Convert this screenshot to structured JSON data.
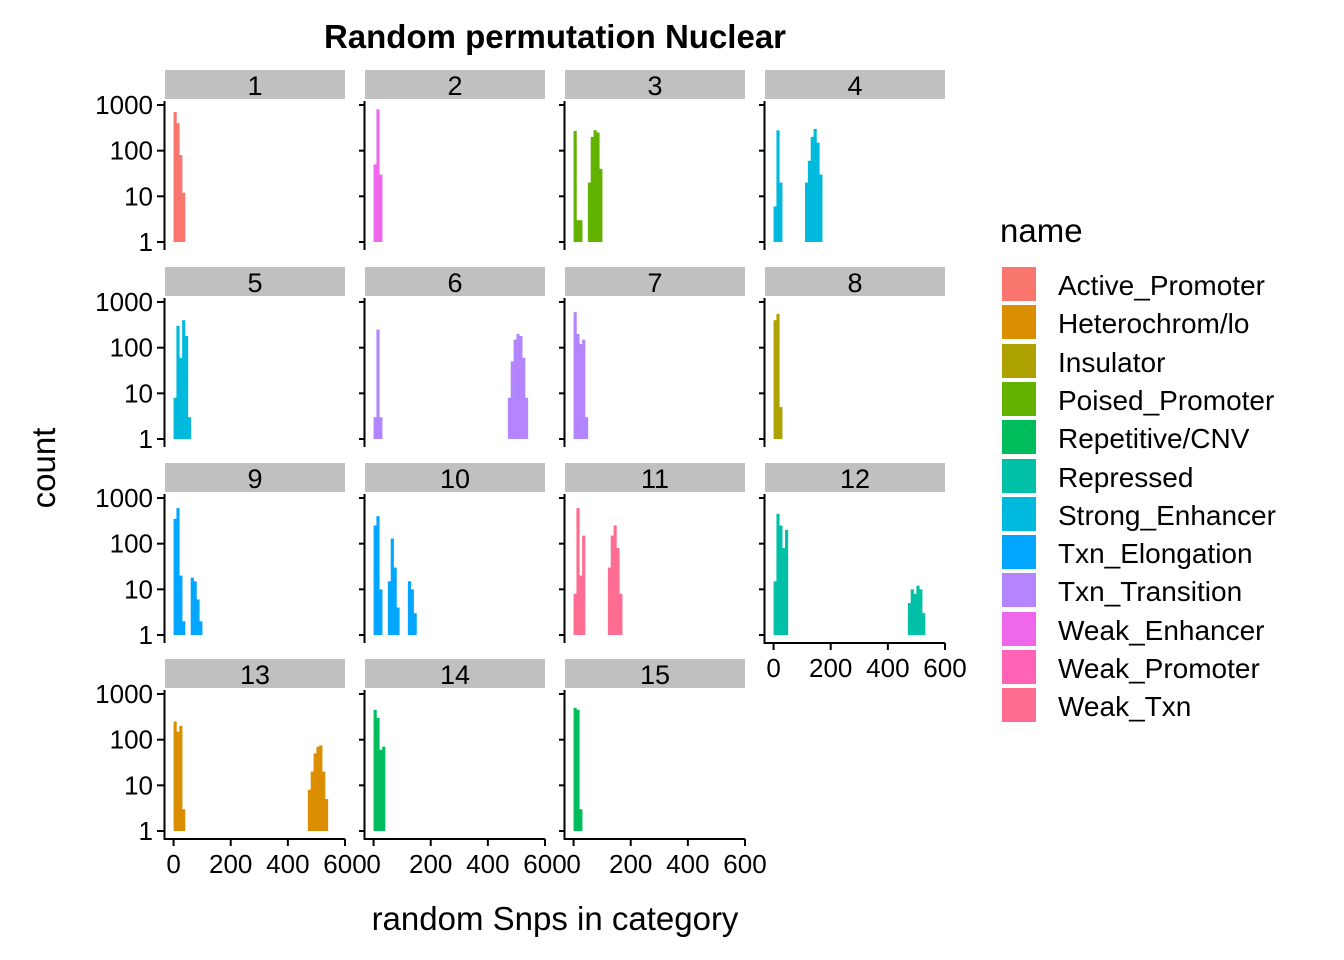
{
  "chart_data": {
    "type": "histogram",
    "title": "Random permutation Nuclear",
    "xlabel": "random Snps in category",
    "ylabel": "count",
    "x_ticks": [
      0,
      200,
      400,
      600
    ],
    "y_ticks": [
      1,
      10,
      100,
      1000
    ],
    "y_scale": "log10",
    "xlim": [
      -30,
      600
    ],
    "ylim": [
      1,
      1000
    ],
    "legend": {
      "title": "name",
      "position": "right",
      "entries": [
        {
          "name": "Active_Promoter",
          "color": "#F8766D"
        },
        {
          "name": "Heterochrom/lo",
          "color": "#DB8E00"
        },
        {
          "name": "Insulator",
          "color": "#AEA200"
        },
        {
          "name": "Poised_Promoter",
          "color": "#64B200"
        },
        {
          "name": "Repetitive/CNV",
          "color": "#00BD5C"
        },
        {
          "name": "Repressed",
          "color": "#00C1A7"
        },
        {
          "name": "Strong_Enhancer",
          "color": "#00BADE"
        },
        {
          "name": "Txn_Elongation",
          "color": "#00A6FF"
        },
        {
          "name": "Txn_Transition",
          "color": "#B385FF"
        },
        {
          "name": "Weak_Enhancer",
          "color": "#EF67EB"
        },
        {
          "name": "Weak_Promoter",
          "color": "#FF63B6"
        },
        {
          "name": "Weak_Txn",
          "color": "#FF6C91"
        }
      ]
    },
    "panels": [
      {
        "label": "1",
        "fill": "#F8766D",
        "bars": [
          [
            0,
            700
          ],
          [
            10,
            400
          ],
          [
            20,
            80
          ],
          [
            30,
            12
          ]
        ]
      },
      {
        "label": "2",
        "fill": "#EF67EB",
        "bars": [
          [
            0,
            50
          ],
          [
            10,
            800
          ],
          [
            20,
            30
          ]
        ]
      },
      {
        "label": "3",
        "fill": "#64B200",
        "bars": [
          [
            0,
            270
          ],
          [
            10,
            3
          ],
          [
            20,
            3
          ],
          [
            50,
            20
          ],
          [
            60,
            200
          ],
          [
            70,
            280
          ],
          [
            80,
            250
          ],
          [
            90,
            40
          ]
        ]
      },
      {
        "label": "4",
        "fill": "#00BADE",
        "bars": [
          [
            0,
            6
          ],
          [
            10,
            280
          ],
          [
            20,
            20
          ],
          [
            110,
            20
          ],
          [
            120,
            60
          ],
          [
            130,
            200
          ],
          [
            140,
            300
          ],
          [
            150,
            150
          ],
          [
            160,
            30
          ]
        ]
      },
      {
        "label": "5",
        "fill": "#00BADE",
        "bars": [
          [
            0,
            8
          ],
          [
            10,
            300
          ],
          [
            20,
            60
          ],
          [
            30,
            400
          ],
          [
            40,
            180
          ],
          [
            50,
            3
          ]
        ]
      },
      {
        "label": "6",
        "fill": "#B385FF",
        "bars": [
          [
            0,
            3
          ],
          [
            10,
            250
          ],
          [
            20,
            3
          ],
          [
            470,
            8
          ],
          [
            480,
            50
          ],
          [
            490,
            150
          ],
          [
            500,
            200
          ],
          [
            510,
            180
          ],
          [
            520,
            60
          ],
          [
            530,
            8
          ]
        ]
      },
      {
        "label": "7",
        "fill": "#B385FF",
        "bars": [
          [
            0,
            600
          ],
          [
            10,
            200
          ],
          [
            20,
            120
          ],
          [
            30,
            150
          ],
          [
            40,
            3
          ]
        ]
      },
      {
        "label": "8",
        "fill": "#AEA200",
        "bars": [
          [
            0,
            400
          ],
          [
            10,
            550
          ],
          [
            20,
            5
          ]
        ]
      },
      {
        "label": "9",
        "fill": "#00A6FF",
        "bars": [
          [
            0,
            350
          ],
          [
            10,
            600
          ],
          [
            20,
            20
          ],
          [
            30,
            2
          ],
          [
            60,
            18
          ],
          [
            70,
            15
          ],
          [
            80,
            6
          ],
          [
            90,
            2
          ]
        ]
      },
      {
        "label": "10",
        "fill": "#00A6FF",
        "bars": [
          [
            0,
            250
          ],
          [
            10,
            400
          ],
          [
            20,
            10
          ],
          [
            50,
            15
          ],
          [
            60,
            130
          ],
          [
            70,
            30
          ],
          [
            80,
            4
          ],
          [
            120,
            15
          ],
          [
            130,
            10
          ],
          [
            140,
            3
          ]
        ]
      },
      {
        "label": "11",
        "fill": "#FF6C91",
        "bars": [
          [
            0,
            8
          ],
          [
            10,
            600
          ],
          [
            20,
            20
          ],
          [
            30,
            150
          ],
          [
            120,
            30
          ],
          [
            130,
            150
          ],
          [
            140,
            250
          ],
          [
            150,
            80
          ],
          [
            160,
            8
          ]
        ]
      },
      {
        "label": "12",
        "fill": "#00C1A7",
        "bars": [
          [
            0,
            15
          ],
          [
            10,
            450
          ],
          [
            20,
            250
          ],
          [
            30,
            80
          ],
          [
            40,
            200
          ],
          [
            470,
            5
          ],
          [
            480,
            10
          ],
          [
            490,
            8
          ],
          [
            500,
            12
          ],
          [
            510,
            10
          ],
          [
            520,
            3
          ]
        ]
      },
      {
        "label": "13",
        "fill": "#DB8E00",
        "bars": [
          [
            0,
            250
          ],
          [
            10,
            150
          ],
          [
            20,
            200
          ],
          [
            30,
            3
          ],
          [
            470,
            8
          ],
          [
            480,
            20
          ],
          [
            490,
            50
          ],
          [
            500,
            70
          ],
          [
            510,
            75
          ],
          [
            520,
            20
          ],
          [
            530,
            5
          ]
        ]
      },
      {
        "label": "14",
        "fill": "#00BD5C",
        "bars": [
          [
            0,
            450
          ],
          [
            10,
            300
          ],
          [
            20,
            60
          ],
          [
            30,
            70
          ]
        ]
      },
      {
        "label": "15",
        "fill": "#00BD5C",
        "bars": [
          [
            0,
            500
          ],
          [
            10,
            450
          ],
          [
            20,
            3
          ]
        ]
      }
    ]
  }
}
